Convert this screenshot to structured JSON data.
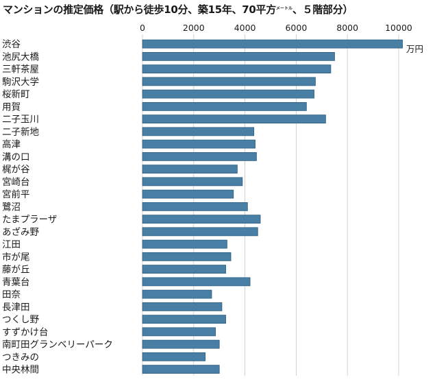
{
  "chart_data": {
    "type": "bar",
    "orientation": "horizontal",
    "title": "マンションの推定価格（駅から徒歩10分、築15年、70平方",
    "title_small": "メートル",
    "title_tail": "、５階部分）",
    "unit": "万円",
    "xlim": [
      0,
      11000
    ],
    "ticks": [
      0,
      2000,
      4000,
      6000,
      8000,
      10000
    ],
    "tick_labels": [
      "0",
      "2000",
      "4000",
      "6000",
      "8000",
      "10000"
    ],
    "grid": true,
    "bar_color": "#4a7fa5",
    "categories": [
      "渋谷",
      "池尻大橋",
      "三軒茶屋",
      "駒沢大学",
      "桜新町",
      "用賀",
      "二子玉川",
      "二子新地",
      "高津",
      "溝の口",
      "梶が谷",
      "宮崎台",
      "宮前平",
      "鷺沼",
      "たまプラーザ",
      "あざみ野",
      "江田",
      "市が尾",
      "藤が丘",
      "青葉台",
      "田奈",
      "長津田",
      "つくし野",
      "すずかけ台",
      "南町田グランベリーパーク",
      "つきみの",
      "中央林間"
    ],
    "values": [
      10150,
      7500,
      7350,
      6750,
      6700,
      6400,
      7150,
      4350,
      4400,
      4450,
      3700,
      3900,
      3550,
      4100,
      4600,
      4500,
      3300,
      3450,
      3250,
      4200,
      2700,
      3100,
      3250,
      2850,
      3000,
      2450,
      3000
    ]
  }
}
